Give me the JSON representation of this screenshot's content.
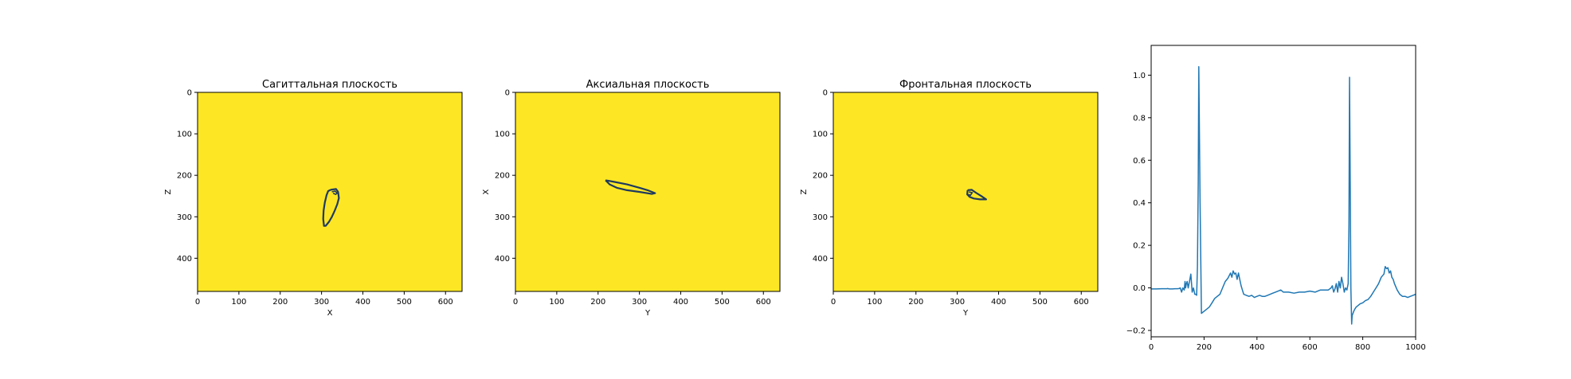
{
  "panels": [
    {
      "title": "Сагиттальная плоскость",
      "xlabel": "X",
      "ylabel": "Z",
      "xticks": [
        0,
        100,
        200,
        300,
        400,
        500,
        600
      ],
      "yticks": [
        0,
        100,
        200,
        300,
        400
      ],
      "xlim": [
        0,
        640
      ],
      "ylim": [
        480,
        0
      ],
      "background": "#fde725",
      "contour_color": "#1f3a5f",
      "contour": [
        [
          322,
          235
        ],
        [
          335,
          233
        ],
        [
          340,
          240
        ],
        [
          342,
          255
        ],
        [
          338,
          270
        ],
        [
          332,
          285
        ],
        [
          325,
          300
        ],
        [
          318,
          312
        ],
        [
          310,
          322
        ],
        [
          306,
          322
        ],
        [
          304,
          305
        ],
        [
          305,
          285
        ],
        [
          308,
          265
        ],
        [
          312,
          248
        ],
        [
          316,
          238
        ],
        [
          322,
          235
        ]
      ],
      "detail": [
        [
          325,
          240
        ],
        [
          333,
          238
        ],
        [
          338,
          243
        ],
        [
          334,
          246
        ],
        [
          328,
          243
        ]
      ]
    },
    {
      "title": "Аксиальная плоскость",
      "xlabel": "Y",
      "ylabel": "X",
      "xticks": [
        0,
        100,
        200,
        300,
        400,
        500,
        600
      ],
      "yticks": [
        0,
        100,
        200,
        300,
        400
      ],
      "xlim": [
        0,
        640
      ],
      "ylim": [
        480,
        0
      ],
      "background": "#fde725",
      "contour_color": "#1f3a5f",
      "contour": [
        [
          218,
          212
        ],
        [
          240,
          216
        ],
        [
          270,
          222
        ],
        [
          300,
          230
        ],
        [
          320,
          236
        ],
        [
          338,
          243
        ],
        [
          330,
          245
        ],
        [
          300,
          240
        ],
        [
          270,
          236
        ],
        [
          245,
          230
        ],
        [
          228,
          222
        ],
        [
          218,
          212
        ]
      ],
      "detail": []
    },
    {
      "title": "Фронтальная плоскость",
      "xlabel": "Y",
      "ylabel": "Z",
      "xticks": [
        0,
        100,
        200,
        300,
        400,
        500,
        600
      ],
      "yticks": [
        0,
        100,
        200,
        300,
        400
      ],
      "xlim": [
        0,
        640
      ],
      "ylim": [
        480,
        0
      ],
      "background": "#fde725",
      "contour_color": "#1f3a5f",
      "contour": [
        [
          325,
          236
        ],
        [
          335,
          235
        ],
        [
          345,
          242
        ],
        [
          358,
          250
        ],
        [
          370,
          258
        ],
        [
          355,
          258
        ],
        [
          340,
          256
        ],
        [
          330,
          252
        ],
        [
          324,
          246
        ],
        [
          325,
          236
        ]
      ],
      "detail": [
        [
          328,
          240
        ],
        [
          336,
          242
        ],
        [
          332,
          248
        ],
        [
          327,
          246
        ]
      ]
    }
  ],
  "chart_data": {
    "type": "line",
    "title": "",
    "xlabel": "",
    "ylabel": "",
    "xlim": [
      0,
      1000
    ],
    "ylim": [
      -0.23,
      1.14
    ],
    "xticks": [
      0,
      200,
      400,
      600,
      800,
      1000
    ],
    "yticks": [
      -0.2,
      0.0,
      0.2,
      0.4,
      0.6,
      0.8,
      1.0
    ],
    "ytick_labels": [
      "−0.2",
      "0.0",
      "0.2",
      "0.4",
      "0.6",
      "0.8",
      "1.0"
    ],
    "grid": false,
    "color": "#1f77b4",
    "series": [
      {
        "x": [
          0,
          20,
          40,
          60,
          62,
          65,
          70,
          80,
          90,
          100,
          105,
          110,
          115,
          120,
          125,
          128,
          130,
          133,
          136,
          140,
          145,
          150,
          155,
          160,
          165,
          170,
          172,
          175,
          178,
          180,
          185,
          190,
          200,
          210,
          220,
          230,
          240,
          250,
          260,
          270,
          280,
          290,
          300,
          305,
          310,
          315,
          320,
          325,
          330,
          335,
          340,
          345,
          350,
          360,
          370,
          380,
          390,
          400,
          410,
          420,
          430,
          440,
          450,
          460,
          470,
          480,
          490,
          500,
          520,
          540,
          560,
          580,
          600,
          620,
          640,
          660,
          670,
          680,
          685,
          690,
          695,
          700,
          705,
          710,
          715,
          720,
          725,
          730,
          735,
          740,
          745,
          748,
          750,
          752,
          755,
          758,
          760,
          763,
          766,
          770,
          775,
          780,
          790,
          800,
          810,
          820,
          830,
          840,
          850,
          860,
          870,
          880,
          885,
          890,
          895,
          900,
          905,
          910,
          915,
          920,
          930,
          940,
          950,
          960,
          970,
          980,
          990,
          1000
        ],
        "y": [
          -0.005,
          -0.005,
          -0.004,
          -0.004,
          -0.003,
          -0.004,
          -0.005,
          -0.005,
          -0.004,
          -0.004,
          -0.003,
          0.0,
          -0.02,
          0.0,
          -0.01,
          0.03,
          0.0,
          0.02,
          0.03,
          0.0,
          0.03,
          0.065,
          -0.02,
          0.0,
          -0.03,
          -0.03,
          -0.035,
          0.1,
          0.5,
          1.04,
          0.4,
          -0.12,
          -0.11,
          -0.1,
          -0.09,
          -0.07,
          -0.05,
          -0.04,
          -0.03,
          0.0,
          0.03,
          0.045,
          0.07,
          0.05,
          0.08,
          0.065,
          0.07,
          0.04,
          0.07,
          0.04,
          0.01,
          -0.01,
          -0.03,
          -0.035,
          -0.04,
          -0.035,
          -0.045,
          -0.04,
          -0.035,
          -0.04,
          -0.04,
          -0.035,
          -0.03,
          -0.025,
          -0.02,
          -0.015,
          -0.01,
          -0.02,
          -0.02,
          -0.025,
          -0.02,
          -0.02,
          -0.015,
          -0.02,
          -0.01,
          -0.01,
          -0.01,
          0.0,
          0.01,
          -0.02,
          -0.005,
          0.02,
          -0.02,
          0.03,
          0.0,
          0.05,
          0.02,
          -0.02,
          0.0,
          -0.01,
          0.02,
          0.3,
          0.99,
          0.6,
          0.0,
          -0.17,
          -0.13,
          -0.12,
          -0.11,
          -0.1,
          -0.09,
          -0.085,
          -0.075,
          -0.07,
          -0.06,
          -0.055,
          -0.04,
          -0.02,
          0.0,
          0.02,
          0.05,
          0.065,
          0.1,
          0.09,
          0.095,
          0.07,
          0.08,
          0.05,
          0.04,
          0.02,
          -0.01,
          -0.03,
          -0.04,
          -0.04,
          -0.045,
          -0.04,
          -0.035,
          -0.03
        ]
      }
    ]
  }
}
